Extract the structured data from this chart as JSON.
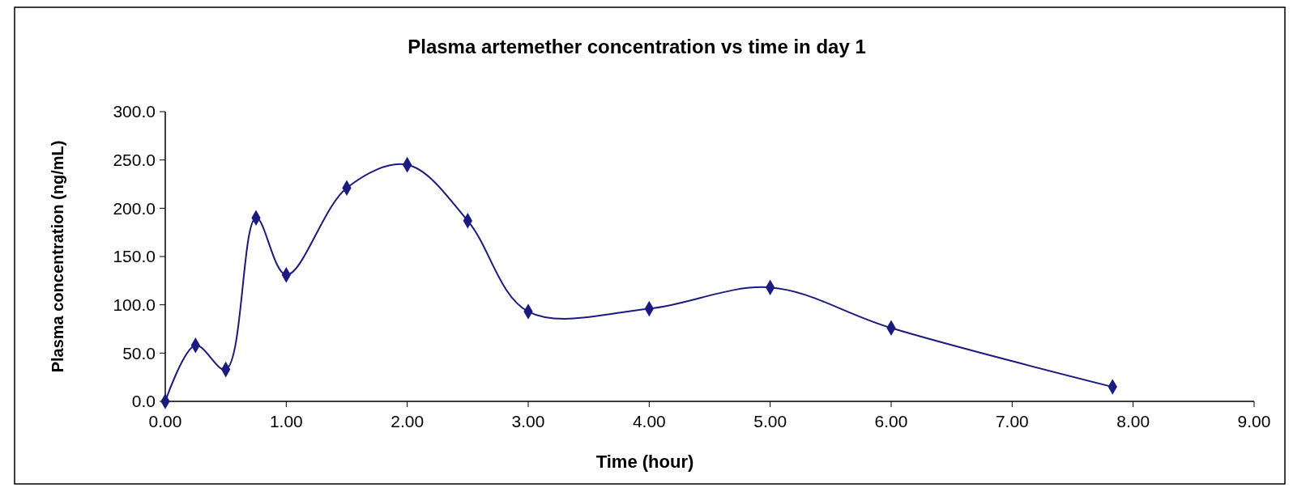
{
  "chart_data": {
    "type": "line",
    "title": "Plasma artemether concentration vs time in day 1",
    "xlabel": "Time (hour)",
    "ylabel": "Plasma concentration (ng/mL)",
    "x": [
      0,
      0.25,
      0.5,
      0.75,
      1,
      1.5,
      2,
      2.5,
      3,
      4,
      5,
      6,
      7.83
    ],
    "series": [
      {
        "color": "#1a1a80",
        "values": [
          0,
          58,
          33,
          190,
          131,
          221,
          245,
          187,
          93,
          96,
          118,
          76,
          15
        ]
      }
    ],
    "xlim": [
      0,
      9
    ],
    "xticks": [
      {
        "value": 0,
        "label": "0.00"
      },
      {
        "value": 1,
        "label": "1.00"
      },
      {
        "value": 2,
        "label": "2.00"
      },
      {
        "value": 3,
        "label": "3.00"
      },
      {
        "value": 4,
        "label": "4.00"
      },
      {
        "value": 5,
        "label": "5.00"
      },
      {
        "value": 6,
        "label": "6.00"
      },
      {
        "value": 7,
        "label": "7.00"
      },
      {
        "value": 8,
        "label": "8.00"
      },
      {
        "value": 9,
        "label": "9.00"
      }
    ],
    "ylim": [
      0,
      300
    ],
    "yticks": [
      {
        "value": 0,
        "label": "0.0"
      },
      {
        "value": 50,
        "label": "50.0"
      },
      {
        "value": 100,
        "label": "100.0"
      },
      {
        "value": 150,
        "label": "150.0"
      },
      {
        "value": 200,
        "label": "200.0"
      },
      {
        "value": 250,
        "label": "250.0"
      },
      {
        "value": 300,
        "label": "300.0"
      }
    ],
    "marker": "diamond",
    "line_style": "solid",
    "grid": false
  }
}
